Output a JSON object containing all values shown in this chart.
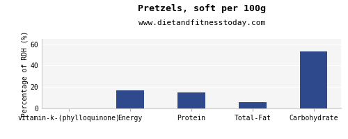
{
  "title": "Pretzels, soft per 100g",
  "subtitle": "www.dietandfitnesstoday.com",
  "categories": [
    "vitamin-k-(phylloquinone)",
    "Energy",
    "Protein",
    "Total-Fat",
    "Carbohydrate"
  ],
  "values": [
    0,
    17,
    15,
    6,
    53
  ],
  "bar_color": "#2e4a8c",
  "ylabel": "Percentage of RDH (%)",
  "ylim": [
    0,
    65
  ],
  "yticks": [
    0,
    20,
    40,
    60
  ],
  "background_color": "#ffffff",
  "plot_bg_color": "#f5f5f5",
  "title_fontsize": 9.5,
  "subtitle_fontsize": 8,
  "ylabel_fontsize": 7,
  "tick_fontsize": 7,
  "bar_width": 0.45
}
